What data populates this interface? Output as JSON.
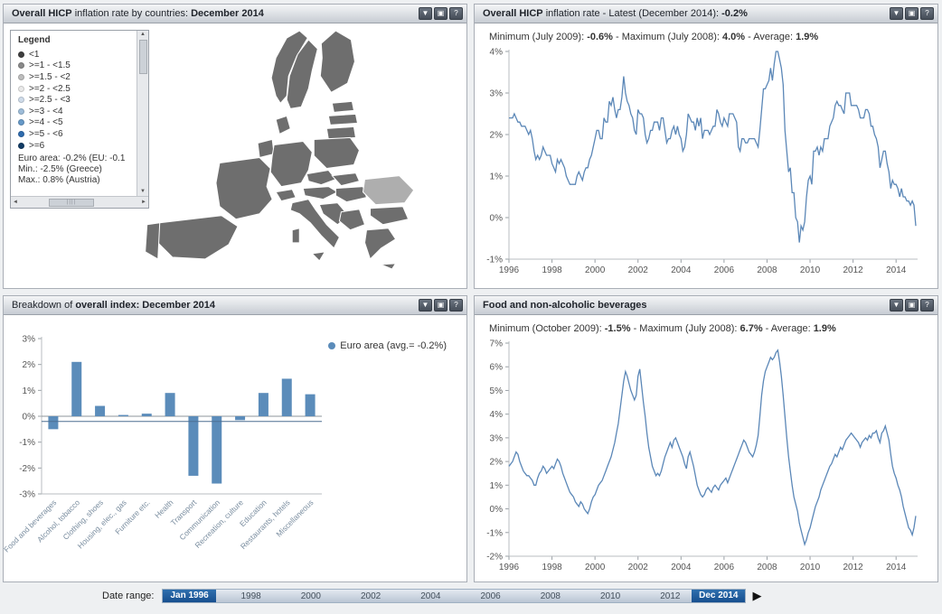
{
  "chrome": {
    "buttons": [
      {
        "name": "collapse-button",
        "glyph": "▼"
      },
      {
        "name": "window-button",
        "glyph": "▣"
      },
      {
        "name": "help-button",
        "glyph": "?"
      }
    ]
  },
  "panels": {
    "map": {
      "title": [
        "Overall HICP",
        " inflation rate by countries: ",
        "December 2014"
      ],
      "colors": {
        "country": "#6e6e6e",
        "highlight": "#aeaeae"
      },
      "legend": {
        "title": "Legend",
        "items": [
          {
            "label": "<1",
            "color": "#3f3f3f"
          },
          {
            "label": ">=1 - <1.5",
            "color": "#8a8a8a"
          },
          {
            "label": ">=1.5 - <2",
            "color": "#bdbdbd"
          },
          {
            "label": ">=2 - <2.5",
            "color": "#e9e9e9"
          },
          {
            "label": ">=2.5 - <3",
            "color": "#cfdcea"
          },
          {
            "label": ">=3 - <4",
            "color": "#9dbcd9"
          },
          {
            "label": ">=4 - <5",
            "color": "#6699c8"
          },
          {
            "label": ">=5 - <6",
            "color": "#2f6cae"
          },
          {
            "label": ">=6",
            "color": "#123c66"
          }
        ],
        "footer_lines": [
          "Euro area: -0.2% (EU: -0.1",
          "Min.: -2.5% (Greece)",
          "Max.: 0.8% (Austria)"
        ]
      }
    },
    "overall": {
      "title": [
        "Overall HICP",
        " inflation rate - Latest (December 2014): ",
        "-0.2%"
      ],
      "subtitle": [
        "Minimum (July 2009): ",
        "-0.6%",
        " - Maximum (July 2008): ",
        "4.0%",
        " - Average: ",
        "1.9%"
      ]
    },
    "breakdown": {
      "title": [
        "Breakdown of ",
        "overall index: December 2014"
      ],
      "legend_label": "Euro area (avg.= -0.2%)"
    },
    "food": {
      "title": [
        "Food and non-alcoholic beverages"
      ],
      "subtitle": [
        "Minimum (October 2009): ",
        "-1.5%",
        " - Maximum (July 2008): ",
        "6.7%",
        " - Average: ",
        "1.9%"
      ]
    }
  },
  "date_range": {
    "label": "Date range:",
    "start": "Jan 1996",
    "end": "Dec 2014",
    "ticks": [
      "1998",
      "2000",
      "2002",
      "2004",
      "2006",
      "2008",
      "2010",
      "2012"
    ],
    "play_glyph": "▶"
  },
  "chart_data": [
    {
      "id": "chart-overall",
      "type": "line",
      "title": "Overall HICP inflation rate - Latest (December 2014): -0.2%",
      "min": {
        "label": "July 2009",
        "value": -0.6
      },
      "max": {
        "label": "July 2008",
        "value": 4.0
      },
      "average": 1.9,
      "color": "#5b87b7",
      "ylim": [
        -1,
        4
      ],
      "y_tick_step": 1,
      "y_suffix": "%",
      "x_domain": [
        1996,
        2015
      ],
      "x_ticks": [
        1996,
        1998,
        2000,
        2002,
        2004,
        2006,
        2008,
        2010,
        2012,
        2014
      ],
      "start_year": 1996,
      "points_per_year": 12,
      "values": [
        2.4,
        2.4,
        2.4,
        2.5,
        2.4,
        2.3,
        2.3,
        2.2,
        2.2,
        2.2,
        2.1,
        2.0,
        2.1,
        1.9,
        1.6,
        1.4,
        1.5,
        1.4,
        1.5,
        1.7,
        1.6,
        1.5,
        1.5,
        1.5,
        1.3,
        1.2,
        1.1,
        1.4,
        1.3,
        1.4,
        1.3,
        1.2,
        1.0,
        0.9,
        0.8,
        0.8,
        0.8,
        0.8,
        1.0,
        1.1,
        1.0,
        0.9,
        1.1,
        1.2,
        1.2,
        1.4,
        1.5,
        1.7,
        1.9,
        2.1,
        2.1,
        1.9,
        1.9,
        2.4,
        2.3,
        2.3,
        2.8,
        2.7,
        2.9,
        2.6,
        2.4,
        2.6,
        2.6,
        2.9,
        3.4,
        3.0,
        2.8,
        2.7,
        2.5,
        2.4,
        2.1,
        2.0,
        2.6,
        2.5,
        2.5,
        2.4,
        2.0,
        1.8,
        1.9,
        2.1,
        2.1,
        2.3,
        2.3,
        2.3,
        2.1,
        2.4,
        2.4,
        2.1,
        1.8,
        1.9,
        1.9,
        2.1,
        2.2,
        2.0,
        2.2,
        2.0,
        1.9,
        1.6,
        1.7,
        2.0,
        2.5,
        2.4,
        2.3,
        2.3,
        2.1,
        2.4,
        2.2,
        2.4,
        1.9,
        2.1,
        2.1,
        2.1,
        2.0,
        2.1,
        2.2,
        2.2,
        2.6,
        2.5,
        2.3,
        2.2,
        2.4,
        2.3,
        2.2,
        2.5,
        2.5,
        2.5,
        2.4,
        2.3,
        1.7,
        1.6,
        1.9,
        1.9,
        1.8,
        1.8,
        1.9,
        1.9,
        1.9,
        1.9,
        1.8,
        1.7,
        2.1,
        2.6,
        3.1,
        3.1,
        3.2,
        3.3,
        3.6,
        3.3,
        3.7,
        4.0,
        4.0,
        3.8,
        3.6,
        3.2,
        2.1,
        1.6,
        1.1,
        1.2,
        0.6,
        0.6,
        0.0,
        -0.1,
        -0.6,
        -0.2,
        -0.3,
        -0.1,
        0.5,
        0.9,
        1.0,
        0.8,
        1.6,
        1.6,
        1.7,
        1.5,
        1.7,
        1.6,
        1.9,
        1.9,
        1.9,
        2.2,
        2.3,
        2.4,
        2.7,
        2.8,
        2.7,
        2.7,
        2.6,
        2.5,
        3.0,
        3.0,
        3.0,
        2.7,
        2.7,
        2.7,
        2.7,
        2.6,
        2.4,
        2.4,
        2.4,
        2.6,
        2.6,
        2.5,
        2.2,
        2.2,
        2.0,
        1.9,
        1.7,
        1.2,
        1.4,
        1.6,
        1.6,
        1.3,
        1.1,
        0.7,
        0.9,
        0.8,
        0.8,
        0.7,
        0.5,
        0.7,
        0.5,
        0.5,
        0.4,
        0.4,
        0.3,
        0.4,
        0.3,
        -0.2
      ]
    },
    {
      "id": "chart-breakdown",
      "type": "bar",
      "title": "Breakdown of overall index: December 2014",
      "legend": "Euro area (avg.= -0.2%)",
      "avg_line": -0.2,
      "color": "#5b8cba",
      "avg_line_color": "#4d6f91",
      "ylim": [
        -3,
        3
      ],
      "y_suffix": "%",
      "categories": [
        "Food and beverages",
        "Alcohol, tobacco",
        "Clothing, shoes",
        "Housing, elec., gas",
        "Furniture etc.",
        "Health",
        "Transport",
        "Communication",
        "Recreation, culture",
        "Education",
        "Restaurants, hotels",
        "Miscellaneous"
      ],
      "values": [
        -0.5,
        2.1,
        0.4,
        0.05,
        0.1,
        0.9,
        -2.3,
        -2.6,
        -0.15,
        0.9,
        1.45,
        0.85
      ]
    },
    {
      "id": "chart-food",
      "type": "line",
      "title": "Food and non-alcoholic beverages",
      "min": {
        "label": "October 2009",
        "value": -1.5
      },
      "max": {
        "label": "July 2008",
        "value": 6.7
      },
      "average": 1.9,
      "color": "#5b87b7",
      "ylim": [
        -2,
        7
      ],
      "y_tick_step": 1,
      "y_suffix": "%",
      "x_domain": [
        1996,
        2015
      ],
      "x_ticks": [
        1996,
        1998,
        2000,
        2002,
        2004,
        2006,
        2008,
        2010,
        2012,
        2014
      ],
      "start_year": 1996,
      "points_per_year": 12,
      "values": [
        1.8,
        1.9,
        2.0,
        2.2,
        2.4,
        2.3,
        2.0,
        1.8,
        1.6,
        1.5,
        1.4,
        1.4,
        1.3,
        1.2,
        1.0,
        1.0,
        1.3,
        1.5,
        1.6,
        1.8,
        1.7,
        1.5,
        1.6,
        1.7,
        1.8,
        1.7,
        1.9,
        2.1,
        2.0,
        1.8,
        1.5,
        1.3,
        1.1,
        0.9,
        0.7,
        0.6,
        0.5,
        0.3,
        0.2,
        0.1,
        0.3,
        0.2,
        0.0,
        -0.1,
        -0.2,
        0.0,
        0.3,
        0.5,
        0.6,
        0.8,
        1.0,
        1.1,
        1.2,
        1.4,
        1.6,
        1.8,
        2.0,
        2.2,
        2.5,
        2.8,
        3.2,
        3.6,
        4.2,
        4.8,
        5.4,
        5.8,
        5.6,
        5.3,
        5.0,
        4.8,
        4.6,
        4.8,
        5.6,
        5.9,
        5.2,
        4.5,
        3.9,
        3.2,
        2.6,
        2.2,
        1.8,
        1.6,
        1.4,
        1.5,
        1.4,
        1.6,
        1.9,
        2.2,
        2.4,
        2.6,
        2.8,
        2.6,
        2.9,
        3.0,
        2.8,
        2.6,
        2.4,
        2.2,
        1.9,
        1.7,
        2.2,
        2.4,
        2.1,
        1.8,
        1.4,
        1.0,
        0.8,
        0.6,
        0.5,
        0.6,
        0.8,
        0.9,
        0.8,
        0.7,
        0.9,
        1.0,
        0.9,
        0.8,
        1.0,
        1.1,
        1.2,
        1.3,
        1.1,
        1.3,
        1.5,
        1.7,
        1.9,
        2.1,
        2.3,
        2.5,
        2.7,
        2.9,
        2.8,
        2.6,
        2.4,
        2.3,
        2.2,
        2.4,
        2.7,
        3.1,
        3.9,
        4.8,
        5.4,
        5.8,
        6.0,
        6.2,
        6.4,
        6.3,
        6.4,
        6.6,
        6.7,
        6.2,
        5.6,
        4.8,
        3.9,
        3.0,
        2.2,
        1.6,
        1.0,
        0.5,
        0.2,
        -0.1,
        -0.6,
        -0.9,
        -1.2,
        -1.5,
        -1.3,
        -1.0,
        -0.8,
        -0.5,
        -0.2,
        0.1,
        0.3,
        0.5,
        0.8,
        1.0,
        1.2,
        1.4,
        1.6,
        1.8,
        1.9,
        2.1,
        2.3,
        2.2,
        2.4,
        2.6,
        2.5,
        2.7,
        2.9,
        3.0,
        3.1,
        3.2,
        3.1,
        3.0,
        2.9,
        2.8,
        2.6,
        2.8,
        2.9,
        3.0,
        2.9,
        3.1,
        3.0,
        3.2,
        3.2,
        3.3,
        3.0,
        2.8,
        3.2,
        3.3,
        3.5,
        3.2,
        2.9,
        2.3,
        1.8,
        1.5,
        1.3,
        1.0,
        0.8,
        0.5,
        0.1,
        -0.2,
        -0.5,
        -0.8,
        -0.9,
        -1.1,
        -0.8,
        -0.3
      ]
    }
  ]
}
